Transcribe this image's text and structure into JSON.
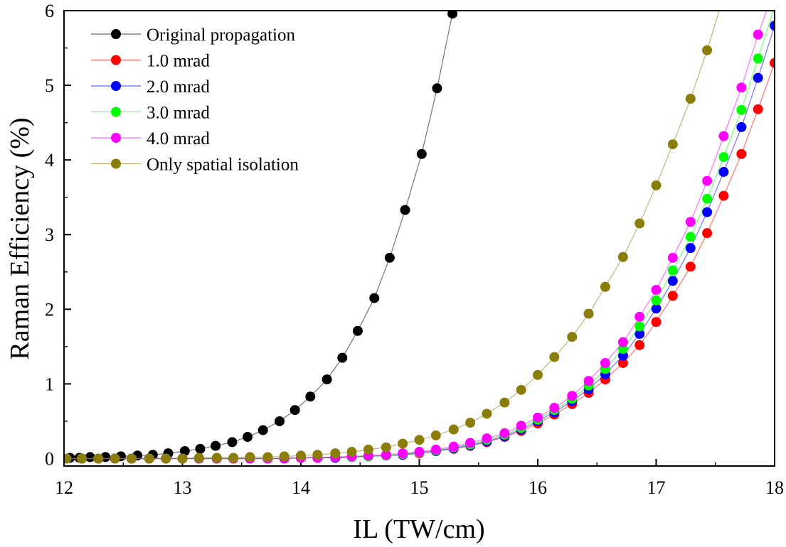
{
  "chart_data": {
    "type": "scatter",
    "title": "",
    "xlabel": "IL (TW/cm)",
    "ylabel": "Raman Efficiency (%)",
    "xlim": [
      12,
      18
    ],
    "ylim": [
      -0.1,
      6
    ],
    "xticks": [
      "12",
      "13",
      "14",
      "15",
      "16",
      "17",
      "18"
    ],
    "yticks": [
      "0",
      "1",
      "2",
      "3",
      "4",
      "5",
      "6"
    ],
    "grid": false,
    "legend_position": "top-left",
    "series": [
      {
        "name": "Original propagation",
        "color": "#000000",
        "x": [
          12.05,
          12.13,
          12.22,
          12.35,
          12.48,
          12.62,
          12.75,
          12.88,
          13.02,
          13.15,
          13.28,
          13.42,
          13.55,
          13.68,
          13.82,
          13.95,
          14.08,
          14.22,
          14.35,
          14.48,
          14.62,
          14.75,
          14.88,
          15.02,
          15.15,
          15.28
        ],
        "y": [
          0.01,
          0.01,
          0.02,
          0.02,
          0.03,
          0.04,
          0.05,
          0.07,
          0.1,
          0.13,
          0.17,
          0.22,
          0.29,
          0.38,
          0.5,
          0.65,
          0.83,
          1.06,
          1.35,
          1.71,
          2.15,
          2.69,
          3.33,
          4.08,
          4.96,
          5.96
        ]
      },
      {
        "name": "1.0 mrad",
        "color": "#ff0000",
        "x": [
          12.02,
          12.15,
          12.29,
          12.43,
          12.57,
          12.72,
          12.86,
          13.0,
          13.14,
          13.29,
          13.43,
          13.57,
          13.72,
          13.86,
          14.0,
          14.14,
          14.29,
          14.43,
          14.57,
          14.72,
          14.86,
          15.0,
          15.14,
          15.29,
          15.43,
          15.57,
          15.72,
          15.86,
          16.0,
          16.14,
          16.29,
          16.43,
          16.57,
          16.72,
          16.86,
          17.0,
          17.14,
          17.29,
          17.43,
          17.57,
          17.72,
          17.86,
          18.0
        ],
        "y": [
          0.0,
          0.0,
          0.0,
          0.0,
          0.0,
          0.0,
          0.0,
          0.0,
          0.0,
          0.0,
          0.0,
          0.0,
          0.0,
          0.0,
          0.01,
          0.01,
          0.01,
          0.02,
          0.03,
          0.04,
          0.05,
          0.07,
          0.1,
          0.13,
          0.17,
          0.22,
          0.29,
          0.37,
          0.47,
          0.59,
          0.73,
          0.88,
          1.06,
          1.28,
          1.52,
          1.83,
          2.18,
          2.57,
          3.02,
          3.52,
          4.08,
          4.68,
          5.3
        ]
      },
      {
        "name": "2.0 mrad",
        "color": "#0000ff",
        "x": [
          12.02,
          12.15,
          12.29,
          12.43,
          12.57,
          12.72,
          12.86,
          13.0,
          13.14,
          13.29,
          13.43,
          13.57,
          13.72,
          13.86,
          14.0,
          14.14,
          14.29,
          14.43,
          14.57,
          14.72,
          14.86,
          15.0,
          15.14,
          15.29,
          15.43,
          15.57,
          15.72,
          15.86,
          16.0,
          16.14,
          16.29,
          16.43,
          16.57,
          16.72,
          16.86,
          17.0,
          17.14,
          17.29,
          17.43,
          17.57,
          17.72,
          17.86,
          18.0
        ],
        "y": [
          0.0,
          0.0,
          0.0,
          0.0,
          0.0,
          0.0,
          0.0,
          0.0,
          0.0,
          0.0,
          0.0,
          0.0,
          0.0,
          0.0,
          0.01,
          0.01,
          0.01,
          0.02,
          0.03,
          0.04,
          0.05,
          0.08,
          0.1,
          0.14,
          0.18,
          0.23,
          0.3,
          0.39,
          0.5,
          0.62,
          0.77,
          0.93,
          1.13,
          1.38,
          1.67,
          2.01,
          2.38,
          2.82,
          3.3,
          3.84,
          4.44,
          5.1,
          5.8
        ]
      },
      {
        "name": "3.0 mrad",
        "color": "#00ff00",
        "x": [
          12.02,
          12.15,
          12.29,
          12.43,
          12.57,
          12.72,
          12.86,
          13.0,
          13.14,
          13.29,
          13.43,
          13.57,
          13.72,
          13.86,
          14.0,
          14.14,
          14.29,
          14.43,
          14.57,
          14.72,
          14.86,
          15.0,
          15.14,
          15.29,
          15.43,
          15.57,
          15.72,
          15.86,
          16.0,
          16.14,
          16.29,
          16.43,
          16.57,
          16.72,
          16.86,
          17.0,
          17.14,
          17.29,
          17.43,
          17.57,
          17.72,
          17.86,
          18.0
        ],
        "y": [
          0.0,
          0.0,
          0.0,
          0.0,
          0.0,
          0.0,
          0.0,
          0.0,
          0.0,
          0.0,
          0.0,
          0.0,
          0.0,
          0.0,
          0.01,
          0.01,
          0.02,
          0.02,
          0.03,
          0.04,
          0.06,
          0.08,
          0.11,
          0.15,
          0.19,
          0.25,
          0.32,
          0.41,
          0.52,
          0.65,
          0.8,
          0.98,
          1.2,
          1.47,
          1.77,
          2.12,
          2.52,
          2.97,
          3.48,
          4.04,
          4.67,
          5.36,
          6.05
        ]
      },
      {
        "name": "4.0 mrad",
        "color": "#ff00ff",
        "x": [
          12.02,
          12.15,
          12.29,
          12.43,
          12.57,
          12.72,
          12.86,
          13.0,
          13.14,
          13.29,
          13.43,
          13.57,
          13.72,
          13.86,
          14.0,
          14.14,
          14.29,
          14.43,
          14.57,
          14.72,
          14.86,
          15.0,
          15.14,
          15.29,
          15.43,
          15.57,
          15.72,
          15.86,
          16.0,
          16.14,
          16.29,
          16.43,
          16.57,
          16.72,
          16.86,
          17.0,
          17.14,
          17.29,
          17.43,
          17.57,
          17.72,
          17.86,
          18.0
        ],
        "y": [
          0.0,
          0.0,
          0.0,
          0.0,
          0.0,
          0.0,
          0.0,
          0.0,
          0.0,
          0.0,
          0.0,
          0.0,
          0.0,
          0.0,
          0.01,
          0.01,
          0.02,
          0.03,
          0.04,
          0.05,
          0.07,
          0.09,
          0.12,
          0.16,
          0.21,
          0.27,
          0.34,
          0.44,
          0.55,
          0.68,
          0.84,
          1.04,
          1.28,
          1.56,
          1.9,
          2.26,
          2.69,
          3.17,
          3.72,
          4.32,
          4.97,
          5.68,
          6.3
        ]
      },
      {
        "name": "Only spatial isolation",
        "color": "#8b7d0a",
        "x": [
          12.02,
          12.15,
          12.29,
          12.43,
          12.57,
          12.72,
          12.86,
          13.0,
          13.14,
          13.29,
          13.43,
          13.57,
          13.72,
          13.86,
          14.0,
          14.14,
          14.29,
          14.43,
          14.57,
          14.72,
          14.86,
          15.0,
          15.14,
          15.29,
          15.43,
          15.57,
          15.72,
          15.86,
          16.0,
          16.14,
          16.29,
          16.43,
          16.57,
          16.72,
          16.86,
          17.0,
          17.14,
          17.29,
          17.43,
          17.57
        ],
        "y": [
          0.0,
          0.0,
          0.0,
          0.0,
          0.0,
          0.0,
          0.0,
          0.0,
          0.01,
          0.01,
          0.01,
          0.02,
          0.02,
          0.03,
          0.04,
          0.05,
          0.07,
          0.09,
          0.12,
          0.15,
          0.2,
          0.25,
          0.31,
          0.39,
          0.48,
          0.6,
          0.75,
          0.92,
          1.12,
          1.36,
          1.63,
          1.94,
          2.3,
          2.7,
          3.15,
          3.66,
          4.21,
          4.82,
          5.47,
          6.2
        ]
      }
    ]
  }
}
